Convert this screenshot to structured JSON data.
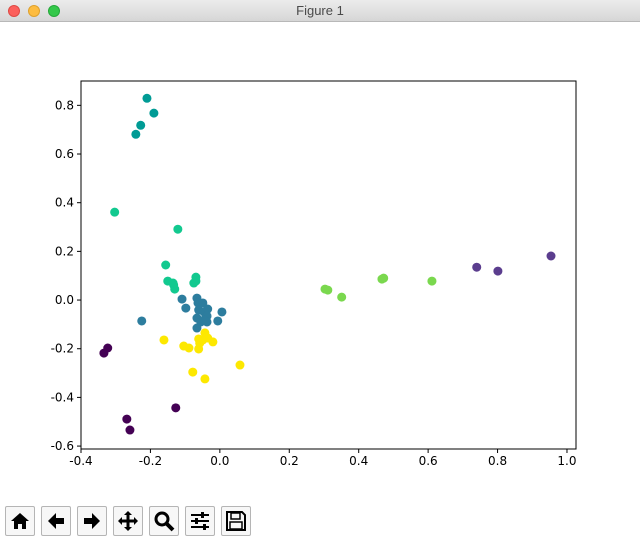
{
  "window": {
    "title": "Figure 1"
  },
  "chart_data": {
    "type": "scatter",
    "xlim": [
      -0.4,
      1.026
    ],
    "ylim": [
      -0.612,
      0.9
    ],
    "xticks": [
      -0.4,
      -0.2,
      {
        "value": 0,
        "label": "0.0"
      },
      0.2,
      0.4,
      0.6,
      0.8,
      {
        "value": 1,
        "label": "1.0"
      }
    ],
    "yticks": [
      -0.6,
      -0.4,
      -0.2,
      {
        "value": 0,
        "label": "0.0"
      },
      0.2,
      0.4,
      0.6,
      0.8
    ],
    "series": [
      {
        "color": "#440154",
        "x": [
          -0.334,
          -0.323,
          -0.268,
          -0.259,
          -0.127
        ],
        "values": [
          -0.218,
          -0.197,
          -0.489,
          -0.534,
          -0.443
        ]
      },
      {
        "color": "#5b3d8e",
        "x": [
          0.74,
          0.801,
          0.954
        ],
        "values": [
          0.135,
          0.119,
          0.181
        ]
      },
      {
        "color": "#009b95",
        "x": [
          -0.21,
          -0.228,
          -0.242,
          -0.19
        ],
        "values": [
          0.829,
          0.718,
          0.681,
          0.768
        ]
      },
      {
        "color": "#2d7d9e",
        "x": [
          -0.225,
          -0.109,
          -0.098,
          -0.066,
          -0.063,
          -0.061,
          -0.046,
          -0.035,
          -0.037,
          -0.066,
          -0.055,
          -0.066,
          -0.037,
          -0.006,
          0.006,
          -0.046,
          -0.049
        ],
        "values": [
          -0.086,
          0.004,
          -0.033,
          0.008,
          -0.012,
          -0.041,
          -0.049,
          -0.037,
          -0.066,
          -0.074,
          -0.09,
          -0.115,
          -0.09,
          -0.086,
          -0.049,
          -0.082,
          -0.012
        ]
      },
      {
        "color": "#12c98f",
        "x": [
          -0.303,
          -0.121,
          -0.156,
          -0.15,
          -0.133,
          -0.13,
          -0.075,
          -0.069,
          -0.069,
          -0.135
        ],
        "values": [
          0.361,
          0.291,
          0.144,
          0.078,
          0.062,
          0.045,
          0.07,
          0.094,
          0.078,
          0.07
        ]
      },
      {
        "color": "#7ad84e",
        "x": [
          0.303,
          0.311,
          0.351,
          0.467,
          0.472,
          0.611
        ],
        "values": [
          0.045,
          0.041,
          0.012,
          0.086,
          0.09,
          0.078
        ]
      },
      {
        "color": "#fde800",
        "x": [
          -0.161,
          -0.104,
          -0.089,
          -0.061,
          -0.061,
          -0.043,
          -0.035,
          -0.02,
          -0.078,
          -0.043,
          0.058,
          -0.058,
          -0.049
        ],
        "values": [
          -0.164,
          -0.189,
          -0.197,
          -0.16,
          -0.201,
          -0.135,
          -0.156,
          -0.172,
          -0.296,
          -0.324,
          -0.267,
          -0.177,
          -0.164
        ]
      }
    ]
  }
}
